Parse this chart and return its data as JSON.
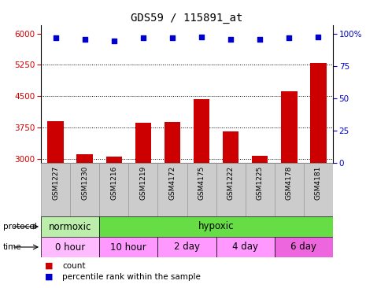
{
  "title": "GDS59 / 115891_at",
  "samples": [
    "GSM1227",
    "GSM1230",
    "GSM1216",
    "GSM1219",
    "GSM4172",
    "GSM4175",
    "GSM1222",
    "GSM1225",
    "GSM4178",
    "GSM4181"
  ],
  "counts": [
    3900,
    3110,
    3055,
    3870,
    3890,
    4430,
    3660,
    3075,
    4620,
    5290
  ],
  "percentile_ranks": [
    97,
    96,
    95,
    97,
    97,
    98,
    96,
    96,
    97,
    98
  ],
  "ylim_left": [
    2900,
    6200
  ],
  "ylim_right": [
    0,
    107
  ],
  "yticks_left": [
    3000,
    3750,
    4500,
    5250,
    6000
  ],
  "yticks_right": [
    0,
    25,
    50,
    75,
    100
  ],
  "bar_color": "#cc0000",
  "dot_color": "#0000cc",
  "left_tick_color": "#cc0000",
  "right_tick_color": "#0000cc",
  "protocol_regions": [
    {
      "label": "normoxic",
      "start": 0,
      "end": 2,
      "color": "#bbeeaa"
    },
    {
      "label": "hypoxic",
      "start": 2,
      "end": 10,
      "color": "#66dd44"
    }
  ],
  "time_regions": [
    {
      "label": "0 hour",
      "start": 0,
      "end": 2,
      "color": "#ffbbff"
    },
    {
      "label": "10 hour",
      "start": 2,
      "end": 4,
      "color": "#ff99ff"
    },
    {
      "label": "2 day",
      "start": 4,
      "end": 6,
      "color": "#ff99ff"
    },
    {
      "label": "4 day",
      "start": 6,
      "end": 8,
      "color": "#ff99ff"
    },
    {
      "label": "6 day",
      "start": 8,
      "end": 10,
      "color": "#ee66dd"
    }
  ],
  "protocol_label": "protocol",
  "time_label": "time",
  "legend_count_label": "count",
  "legend_pct_label": "percentile rank within the sample",
  "sample_box_color": "#cccccc",
  "sample_box_edge": "#999999",
  "n_samples": 10
}
